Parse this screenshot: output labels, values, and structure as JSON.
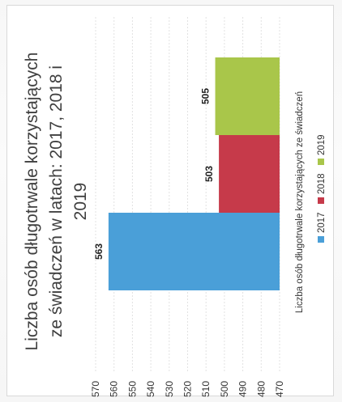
{
  "chart_data": {
    "type": "bar",
    "orientation": "rotated-90-ccw",
    "title_lines": [
      "Liczba osób długotrwale korzystających",
      "ze świadczeń w latach: 2017, 2018 i",
      "2019"
    ],
    "categories": [
      "Liczba osób długotrwale korzystających ze świadczeń"
    ],
    "series": [
      {
        "name": "2017",
        "values": [
          563
        ],
        "color": "#4a9fd8"
      },
      {
        "name": "2018",
        "values": [
          503
        ],
        "color": "#c63a4a"
      },
      {
        "name": "2019",
        "values": [
          505
        ],
        "color": "#a9c64a"
      }
    ],
    "ylim": [
      470,
      570
    ],
    "yticks": [
      570,
      560,
      550,
      540,
      530,
      520,
      510,
      500,
      490,
      480,
      470
    ],
    "grid": true,
    "legend_position": "bottom"
  }
}
